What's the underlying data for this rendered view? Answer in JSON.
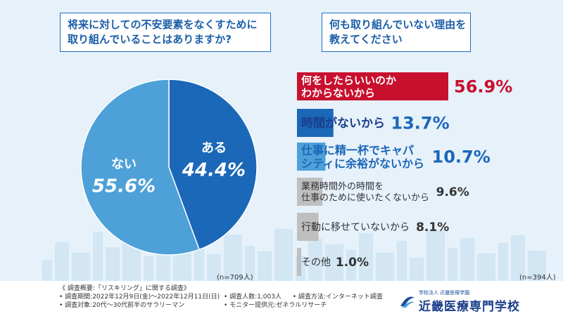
{
  "question1": {
    "line1": "将来に対しての不安要素をなくすために",
    "line2": "取り組んでいることはありますか?"
  },
  "question2": {
    "line1": "何も取り組んでいない理由を",
    "line2": "教えてください"
  },
  "colors": {
    "blue_dark": "#1b67b8",
    "blue_light": "#4ea0d8",
    "red": "#c8102e",
    "gray": "#bfbfbf",
    "title_blue": "#1b5fa8"
  },
  "chart_data": [
    {
      "type": "pie",
      "n_label": "(n=709人)",
      "slices": [
        {
          "label": "ある",
          "value": 44.4,
          "value_label": "44.4%",
          "color": "#1b67b8"
        },
        {
          "label": "ない",
          "value": 55.6,
          "value_label": "55.6%",
          "color": "#4ea0d8"
        }
      ]
    },
    {
      "type": "bar",
      "orientation": "horizontal",
      "n_label": "(n=394人)",
      "xlim": [
        0,
        56.9
      ],
      "bars": [
        {
          "lines": [
            "何をしたらいいのか",
            "わからないから"
          ],
          "value": 56.9,
          "value_label": "56.9%",
          "color": "#c8102e"
        },
        {
          "lines": [
            "時間がないから"
          ],
          "value": 13.7,
          "value_label": "13.7%",
          "color": "#1b67b8"
        },
        {
          "lines": [
            "仕事に精一杯でキャパ",
            "シティに余裕がないから"
          ],
          "value": 10.7,
          "value_label": "10.7%",
          "color": "#4ea0d8"
        },
        {
          "lines": [
            "業務時間外の時間を",
            "仕事のために使いたくないから"
          ],
          "value": 9.6,
          "value_label": "9.6%",
          "color": "#bfbfbf"
        },
        {
          "lines": [
            "行動に移せていないから"
          ],
          "value": 8.1,
          "value_label": "8.1%",
          "color": "#bfbfbf"
        },
        {
          "lines": [
            "その他"
          ],
          "value": 1.0,
          "value_label": "1.0%",
          "color": "#bfbfbf"
        }
      ]
    }
  ],
  "footer": {
    "line1": "《 調査概要:「リスキリング」に関する調査》",
    "line2": "• 調査期間:2022年12月9日(金)～2022年12月11日(日)",
    "line2b": "• 調査人数:1,003人",
    "line2c": "• 調査方法:インターネット調査",
    "line3": "• 調査対象:20代～30代前半のサラリーマン",
    "line3b": "• モニター提供元:ゼネラルリサーチ"
  },
  "logo": {
    "sub": "学校法人 近畿医療学園",
    "name": "近畿医療専門学校"
  }
}
